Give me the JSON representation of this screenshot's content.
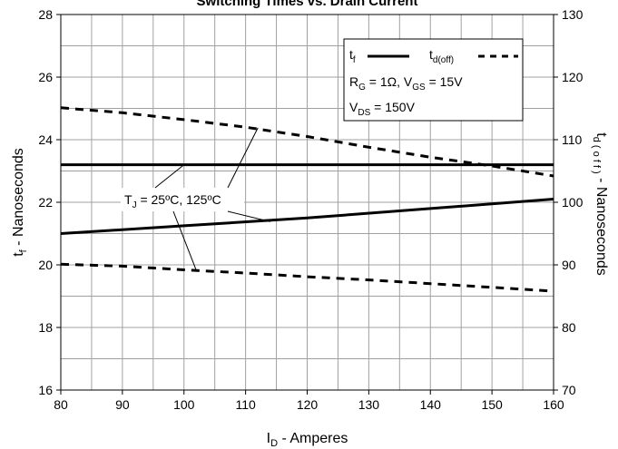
{
  "chart_data": {
    "type": "line",
    "title": "Switching Times vs. Drain Current",
    "xlabel": {
      "main": "I",
      "sub": "D",
      "rest": " - Amperes"
    },
    "ylabel_left": {
      "main": "t",
      "sub": "f",
      "rest": " - Nanoseconds"
    },
    "ylabel_right": {
      "main": "t",
      "sub": "d ( o f f )",
      "rest": " - Nanoseconds"
    },
    "xlim": [
      80,
      160
    ],
    "ylim_left": [
      16,
      28
    ],
    "ylim_right": [
      70,
      130
    ],
    "x_ticks": [
      "80",
      "90",
      "100",
      "110",
      "120",
      "130",
      "140",
      "150",
      "160"
    ],
    "y_ticks_left": [
      "16",
      "18",
      "20",
      "22",
      "24",
      "26",
      "28"
    ],
    "y_ticks_right": [
      "70",
      "80",
      "90",
      "100",
      "110",
      "120",
      "130"
    ],
    "grid": true,
    "legend_position": "top-right",
    "legend": {
      "tf": {
        "main": "t",
        "sub": "f"
      },
      "td": {
        "main": "t",
        "sub": "d(off)"
      },
      "cond1": {
        "a": "R",
        "a_sub": "G",
        "b": " = 1Ω,  V",
        "b_sub": "GS",
        "c": " = 15V"
      },
      "cond2": {
        "a": "V",
        "a_sub": "DS",
        "b": " = 150V"
      }
    },
    "annotation": {
      "main": "T",
      "sub": "J",
      "rest": " = 25ºC, 125ºC"
    },
    "series": [
      {
        "name": "t_f",
        "axis": "left",
        "style": "solid",
        "x": [
          80,
          160
        ],
        "y": [
          23.2,
          23.2
        ]
      },
      {
        "name": "t_f",
        "axis": "left",
        "style": "solid",
        "x": [
          80,
          100,
          120,
          140,
          160
        ],
        "y": [
          21.0,
          21.25,
          21.5,
          21.8,
          22.1
        ]
      },
      {
        "name": "t_d(off)",
        "axis": "right",
        "style": "dashed",
        "x": [
          80,
          90,
          100,
          110,
          120,
          130,
          140,
          150,
          160
        ],
        "y": [
          115.1,
          114.3,
          113.2,
          112.0,
          110.5,
          108.8,
          107.2,
          105.8,
          104.2
        ]
      },
      {
        "name": "t_d(off)",
        "axis": "right",
        "style": "dashed",
        "x": [
          80,
          90,
          100,
          110,
          120,
          130,
          140,
          150,
          160
        ],
        "y": [
          90.1,
          89.8,
          89.2,
          88.7,
          88.1,
          87.6,
          87.0,
          86.4,
          85.8
        ]
      }
    ],
    "colors": {
      "line": "#000000",
      "grid": "#a0a0a0"
    }
  }
}
